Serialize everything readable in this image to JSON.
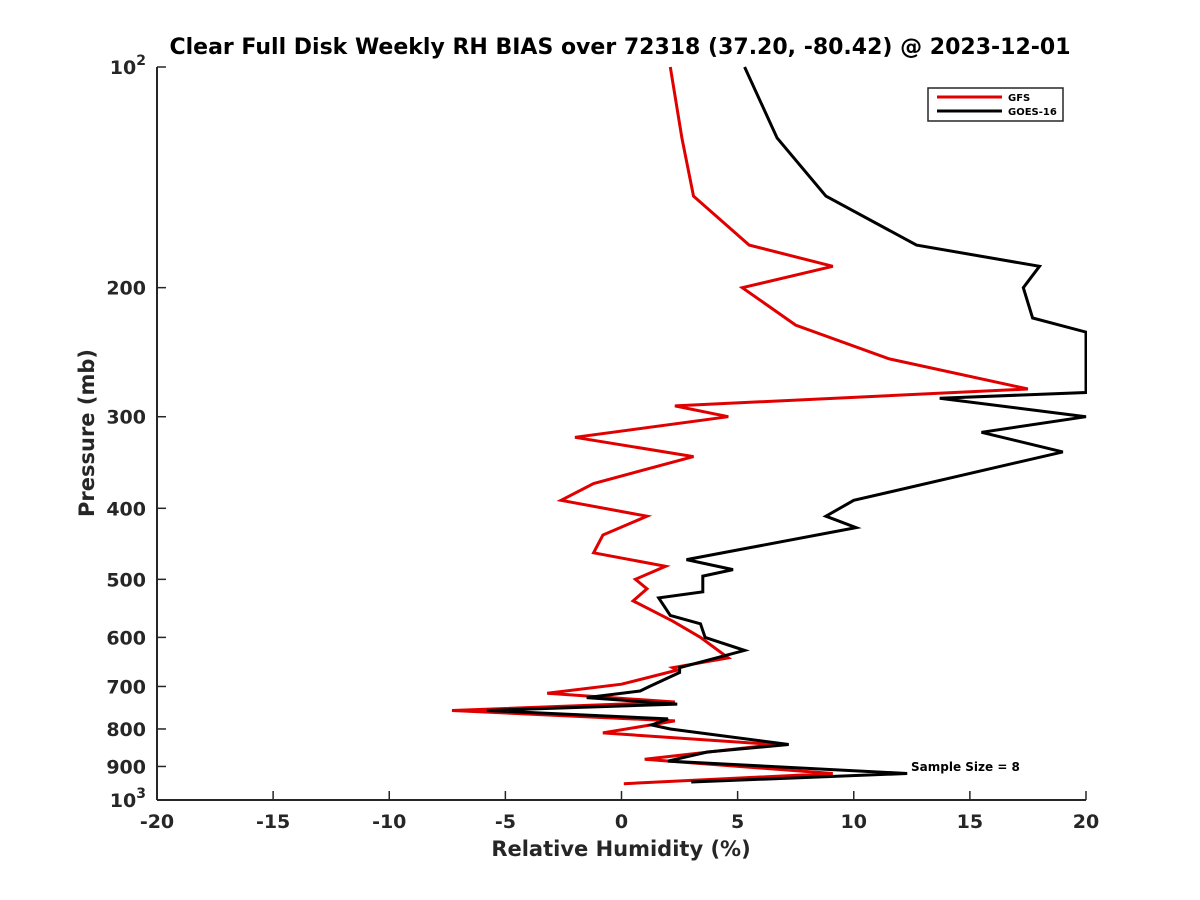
{
  "chart_data": {
    "type": "line",
    "title": "Clear Full Disk Weekly RH BIAS over 72318 (37.20, -80.42) @ 2023-12-01",
    "xlabel": "Relative Humidity (%)",
    "ylabel": "Pressure (mb)",
    "xlim": [
      -20,
      20
    ],
    "ylim": [
      100,
      1000
    ],
    "y_scale": "log",
    "y_reversed": true,
    "grid": false,
    "legend_position": "top-right",
    "x_ticks": [
      "-20",
      "-15",
      "-10",
      "-5",
      "0",
      "5",
      "10",
      "15",
      "20"
    ],
    "y_ticks": [
      {
        "value": 100,
        "base": "10",
        "exp": "2"
      },
      {
        "value": 200,
        "label": "200"
      },
      {
        "value": 300,
        "label": "300"
      },
      {
        "value": 400,
        "label": "400"
      },
      {
        "value": 500,
        "label": "500"
      },
      {
        "value": 600,
        "label": "600"
      },
      {
        "value": 700,
        "label": "700"
      },
      {
        "value": 800,
        "label": "800"
      },
      {
        "value": 900,
        "label": "900"
      },
      {
        "value": 1000,
        "base": "10",
        "exp": "3"
      }
    ],
    "annotation": "Sample Size = 8",
    "series": [
      {
        "name": "GFS",
        "color": "#e00000",
        "points": [
          [
            2.1,
            100
          ],
          [
            2.6,
            125
          ],
          [
            3.1,
            150
          ],
          [
            5.5,
            175
          ],
          [
            9.1,
            187
          ],
          [
            5.2,
            200
          ],
          [
            7.5,
            225
          ],
          [
            11.5,
            250
          ],
          [
            17.5,
            275
          ],
          [
            2.3,
            290
          ],
          [
            4.6,
            300
          ],
          [
            -2.0,
            320
          ],
          [
            3.1,
            340
          ],
          [
            -1.2,
            370
          ],
          [
            -2.6,
            390
          ],
          [
            1.1,
            410
          ],
          [
            -0.8,
            435
          ],
          [
            -1.2,
            460
          ],
          [
            1.9,
            480
          ],
          [
            0.6,
            500
          ],
          [
            1.1,
            515
          ],
          [
            0.5,
            535
          ],
          [
            2.2,
            570
          ],
          [
            3.4,
            600
          ],
          [
            4.6,
            640
          ],
          [
            2.2,
            660
          ],
          [
            2.4,
            665
          ],
          [
            0.0,
            695
          ],
          [
            -3.2,
            715
          ],
          [
            2.3,
            735
          ],
          [
            -7.3,
            755
          ],
          [
            2.3,
            780
          ],
          [
            -0.8,
            810
          ],
          [
            6.6,
            840
          ],
          [
            1.0,
            880
          ],
          [
            9.1,
            920
          ],
          [
            0.1,
            950
          ]
        ]
      },
      {
        "name": "GOES-16",
        "color": "#000000",
        "points": [
          [
            5.3,
            100
          ],
          [
            6.7,
            125
          ],
          [
            8.8,
            150
          ],
          [
            12.7,
            175
          ],
          [
            18.0,
            187
          ],
          [
            17.3,
            200
          ],
          [
            17.7,
            220
          ],
          [
            20.0,
            230
          ],
          [
            20.0,
            278
          ],
          [
            13.7,
            283
          ],
          [
            20.0,
            300
          ],
          [
            15.5,
            315
          ],
          [
            19.0,
            335
          ],
          [
            10.0,
            390
          ],
          [
            8.8,
            410
          ],
          [
            10.1,
            425
          ],
          [
            2.8,
            470
          ],
          [
            4.8,
            485
          ],
          [
            3.5,
            495
          ],
          [
            3.5,
            520
          ],
          [
            1.6,
            530
          ],
          [
            2.1,
            560
          ],
          [
            3.4,
            575
          ],
          [
            3.6,
            600
          ],
          [
            5.3,
            625
          ],
          [
            2.5,
            660
          ],
          [
            2.5,
            670
          ],
          [
            1.2,
            700
          ],
          [
            0.8,
            710
          ],
          [
            -1.5,
            725
          ],
          [
            2.4,
            740
          ],
          [
            -5.8,
            755
          ],
          [
            2.0,
            775
          ],
          [
            1.3,
            790
          ],
          [
            2.1,
            800
          ],
          [
            7.2,
            840
          ],
          [
            3.7,
            860
          ],
          [
            2.0,
            885
          ],
          [
            12.3,
            920
          ],
          [
            3.0,
            945
          ]
        ]
      }
    ]
  }
}
